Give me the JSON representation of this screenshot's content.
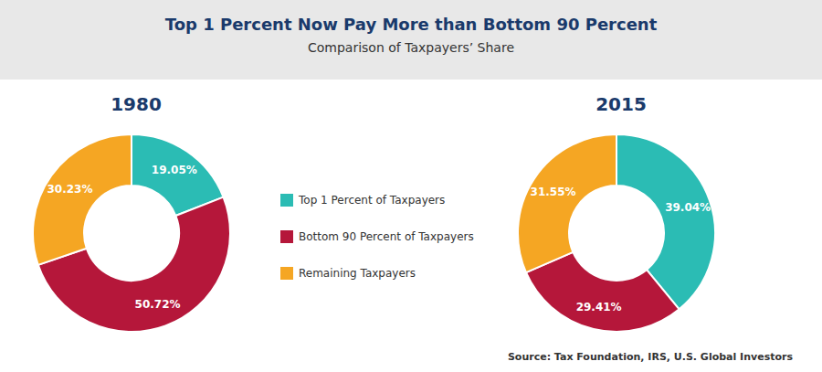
{
  "chart_data": {
    "type": "pie",
    "title": "Top 1 Percent Now Pay More than Bottom 90 Percent",
    "subtitle": "Comparison of Taxpayers’ Share",
    "categories": [
      "Top 1 Percent of Taxpayers",
      "Bottom 90 Percent of Taxpayers",
      "Remaining Taxpayers"
    ],
    "colors": [
      "#2bbcb4",
      "#b5173a",
      "#f5a623"
    ],
    "series": [
      {
        "name": "1980",
        "values": [
          19.05,
          50.72,
          30.23
        ],
        "value_labels": [
          "19.05%",
          "50.72%",
          "30.23%"
        ]
      },
      {
        "name": "2015",
        "values": [
          39.04,
          29.41,
          31.55
        ],
        "value_labels": [
          "39.04%",
          "29.41%",
          "31.55%"
        ]
      }
    ],
    "data_labels": true,
    "legend": "center",
    "annotations": [
      "Source: Tax Foundation, IRS, U.S. Global Investors"
    ]
  }
}
